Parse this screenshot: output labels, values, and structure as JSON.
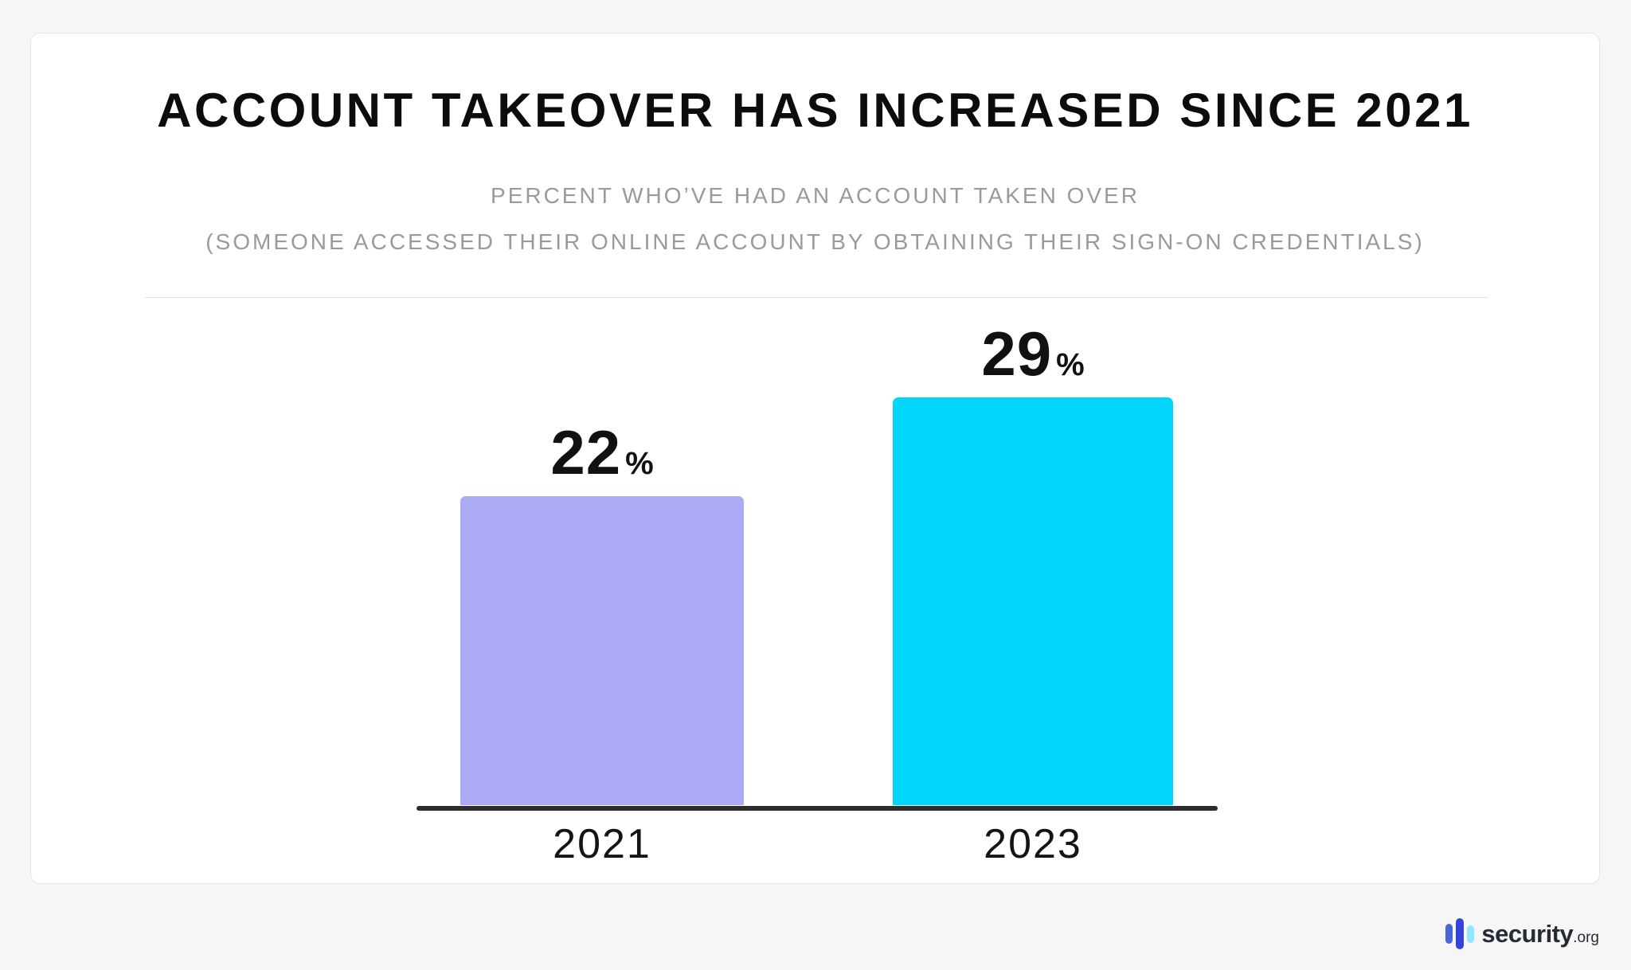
{
  "header": {
    "title": "ACCOUNT TAKEOVER HAS INCREASED SINCE 2021",
    "subtitle_line1": "PERCENT WHO’VE HAD AN ACCOUNT TAKEN OVER",
    "subtitle_line2": "(SOMEONE ACCESSED THEIR ONLINE ACCOUNT BY OBTAINING THEIR SIGN-ON CREDENTIALS)"
  },
  "chart_data": {
    "type": "bar",
    "title": "ACCOUNT TAKEOVER HAS INCREASED SINCE 2021",
    "subtitle": "PERCENT WHO’VE HAD AN ACCOUNT TAKEN OVER (SOMEONE ACCESSED THEIR ONLINE ACCOUNT BY OBTAINING THEIR SIGN-ON CREDENTIALS)",
    "categories": [
      "2021",
      "2023"
    ],
    "values": [
      22,
      29
    ],
    "value_labels": [
      "22",
      "29"
    ],
    "value_suffix": "%",
    "series_colors": [
      "#ACA9F5",
      "#00D7FB"
    ],
    "axis_line_color": "#2D2D2D",
    "xlabel": "",
    "ylabel": "",
    "ylim": [
      0,
      30
    ],
    "grid": false,
    "legend": false
  },
  "footer": {
    "logo_text": "security",
    "logo_suffix": ".org",
    "logo_icon_colors": [
      "#4B64DA",
      "#3742D8",
      "#8FE8FD"
    ]
  }
}
